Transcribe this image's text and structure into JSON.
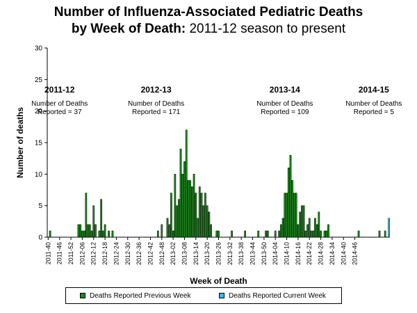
{
  "title_line1": "Number of Influenza-Associated Pediatric Deaths",
  "title_line2_bold": "by Week of Death:",
  "title_line2_normal": "2011-12 season to present",
  "colors": {
    "previous": "#1a8a1a",
    "current": "#33bbee"
  },
  "chart_data": {
    "type": "bar",
    "title": "Number of Influenza-Associated Pediatric Deaths by Week of Death: 2011-12 season to present",
    "xlabel": "Week of Death",
    "ylabel": "Number of deaths",
    "ylim": [
      0,
      30
    ],
    "yticks": [
      0,
      5,
      10,
      15,
      20,
      25,
      30
    ],
    "legend_position": "bottom",
    "tick_labels": [
      "2011-40",
      "2011-46",
      "2011-52",
      "2012-06",
      "2012-12",
      "2012-18",
      "2012-24",
      "2012-30",
      "2012-36",
      "2012-42",
      "2012-48",
      "2013-02",
      "2013-08",
      "2013-14",
      "2013-20",
      "2013-26",
      "2013-32",
      "2013-38",
      "2013-44",
      "2013-50",
      "2014-04",
      "2014-10",
      "2014-16",
      "2014-22",
      "2014-28",
      "2014-34",
      "2014-40",
      "2014-46"
    ],
    "series": [
      {
        "name": "Deaths Reported Previous Week",
        "color": "#1a8a1a",
        "values": [
          0,
          1,
          0,
          0,
          0,
          0,
          0,
          0,
          0,
          0,
          0,
          0,
          0,
          0,
          0,
          0,
          2,
          2,
          1,
          1,
          7,
          2,
          2,
          1,
          5,
          2,
          0,
          1,
          6,
          1,
          2,
          0,
          1,
          0,
          1,
          0,
          0,
          0,
          0,
          0,
          0,
          0,
          0,
          0,
          0,
          0,
          0,
          0,
          0,
          0,
          0,
          0,
          0,
          0,
          0,
          0,
          0,
          0,
          1,
          0,
          2,
          0,
          0,
          3,
          2,
          7,
          1,
          10,
          5,
          6,
          14,
          10,
          12,
          17,
          9,
          9,
          8,
          10,
          7,
          3,
          8,
          7,
          5,
          7,
          5,
          4,
          2,
          0,
          0,
          1,
          1,
          0,
          0,
          0,
          0,
          0,
          0,
          1,
          0,
          0,
          0,
          0,
          0,
          0,
          1,
          0,
          0,
          0,
          0,
          0,
          0,
          1,
          0,
          0,
          0,
          1,
          1,
          0,
          0,
          0,
          1,
          0,
          1,
          2,
          3,
          7,
          7,
          11,
          13,
          9,
          7,
          7,
          2,
          4,
          5,
          5,
          1,
          2,
          3,
          1,
          1,
          3,
          2,
          4,
          1,
          0,
          1,
          1,
          2,
          0,
          0,
          0,
          0,
          0,
          0,
          0,
          0,
          0,
          0,
          0,
          0,
          0,
          0,
          0,
          1,
          0,
          0,
          0,
          0,
          0,
          0,
          0,
          0,
          0,
          0,
          1,
          0,
          0,
          1,
          0,
          0
        ]
      },
      {
        "name": "Deaths Reported Current Week",
        "color": "#33bbee",
        "values": [
          0,
          0,
          0,
          0,
          0,
          0,
          0,
          0,
          0,
          0,
          0,
          0,
          0,
          0,
          0,
          0,
          0,
          0,
          0,
          0,
          0,
          0,
          0,
          0,
          0,
          0,
          0,
          0,
          0,
          0,
          0,
          0,
          0,
          0,
          0,
          0,
          0,
          0,
          0,
          0,
          0,
          0,
          0,
          0,
          0,
          0,
          0,
          0,
          0,
          0,
          0,
          0,
          0,
          0,
          0,
          0,
          0,
          0,
          0,
          0,
          0,
          0,
          0,
          0,
          0,
          0,
          0,
          0,
          0,
          0,
          0,
          0,
          0,
          0,
          0,
          0,
          0,
          0,
          0,
          0,
          0,
          0,
          0,
          0,
          0,
          0,
          0,
          0,
          0,
          0,
          0,
          0,
          0,
          0,
          0,
          0,
          0,
          0,
          0,
          0,
          0,
          0,
          0,
          0,
          0,
          0,
          0,
          0,
          0,
          0,
          0,
          0,
          0,
          0,
          0,
          0,
          0,
          0,
          0,
          0,
          0,
          0,
          0,
          0,
          0,
          0,
          0,
          0,
          0,
          0,
          0,
          0,
          0,
          0,
          0,
          0,
          0,
          0,
          0,
          0,
          0,
          0,
          0,
          0,
          0,
          0,
          0,
          0,
          0,
          0,
          0,
          0,
          0,
          0,
          0,
          0,
          0,
          0,
          0,
          0,
          0,
          0,
          0,
          0,
          0,
          0,
          0,
          0,
          0,
          0,
          0,
          0,
          0,
          0,
          0,
          0,
          0,
          0,
          0,
          0,
          3
        ]
      }
    ],
    "annotations": [
      {
        "season": "2011-12",
        "text1": "Number of Deaths",
        "text2": "Reported = 37",
        "week_index": 6
      },
      {
        "season": "2012-13",
        "text1": "Number of Deaths",
        "text2": "Reported = 171",
        "week_index": 57
      },
      {
        "season": "2013-14",
        "text1": "Number of Deaths",
        "text2": "Reported = 109",
        "week_index": 125
      },
      {
        "season": "2014-15",
        "text1": "Number of Deaths",
        "text2": "Reported = 5",
        "week_index": 172
      }
    ]
  }
}
